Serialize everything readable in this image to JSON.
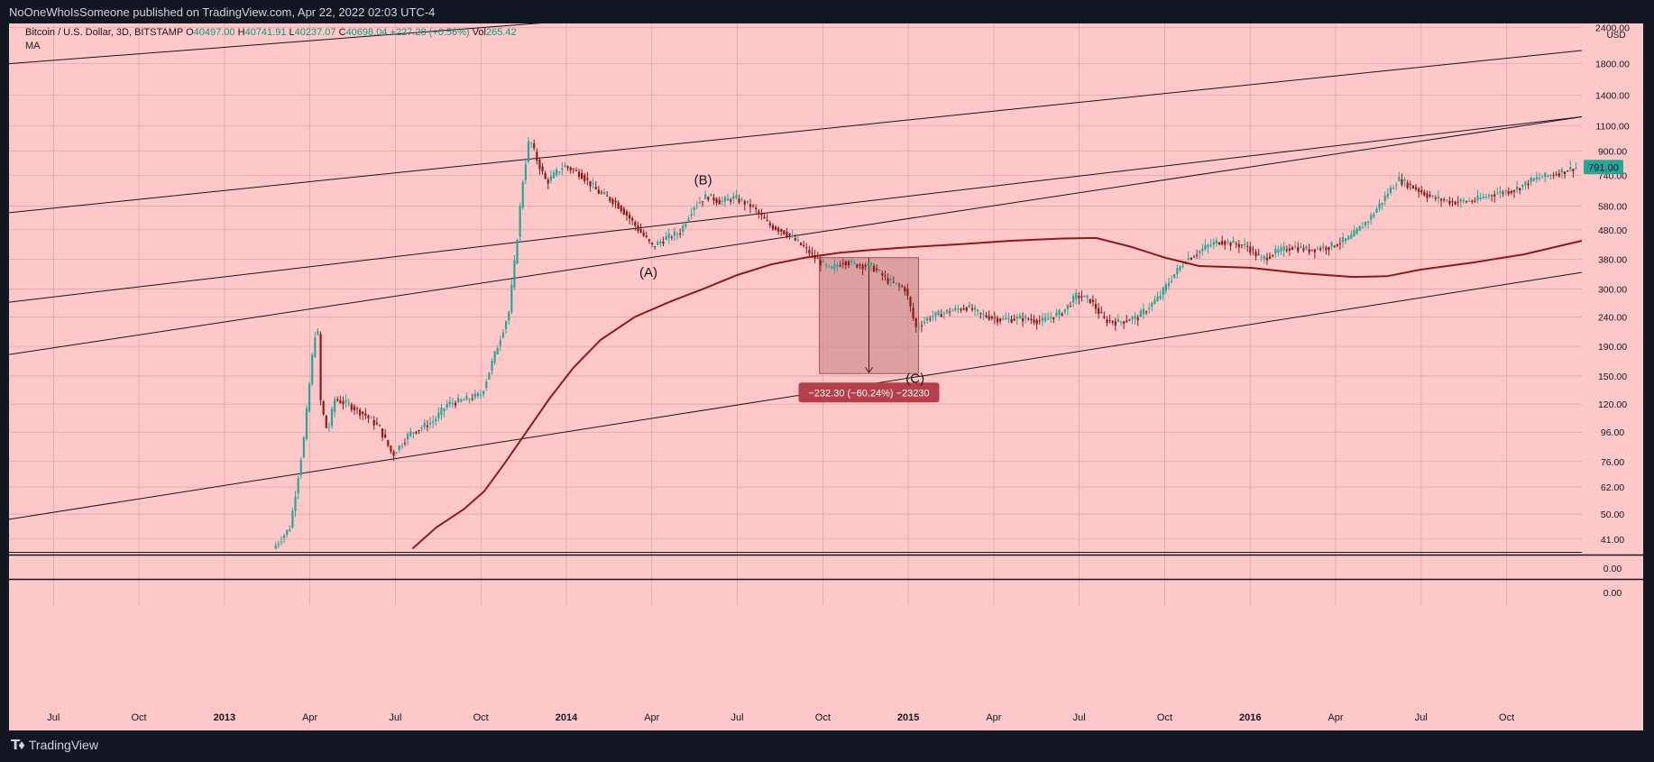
{
  "header": {
    "published": "NoOneWhoIsSomeone published on TradingView.com, Apr 22, 2022 02:03 UTC-4"
  },
  "legend": {
    "symbol": "Bitcoin / U.S. Dollar, 3D, BITSTAMP",
    "open_label": "O",
    "open": "40497.00",
    "high_label": "H",
    "high": "40741.91",
    "low_label": "L",
    "low": "40237.07",
    "close_label": "C",
    "close": "40698.04",
    "change": "+227.28 (+0.56%)",
    "vol_label": "Vol",
    "vol": "265.42",
    "indicator": "MA"
  },
  "footer": {
    "brand": "TradingView"
  },
  "colors": {
    "background": "#ffc8c8",
    "up": "#26a69a",
    "down": "#8b1a1a",
    "ma": "#8b1a1a",
    "measure_fill": "#c98b8b",
    "measure_label_bg": "#b5404a",
    "price_badge": "#26a69a"
  },
  "chart_data": {
    "type": "candlestick",
    "scale": "log",
    "currency": "USD",
    "y_ticks": [
      "2400.00",
      "1800.00",
      "1400.00",
      "1100.00",
      "900.00",
      "740.00",
      "580.00",
      "480.00",
      "380.00",
      "300.00",
      "240.00",
      "190.00",
      "150.00",
      "120.00",
      "96.00",
      "76.00",
      "62.00",
      "50.00",
      "41.00"
    ],
    "y_tick_values": [
      2400,
      1800,
      1400,
      1100,
      900,
      740,
      580,
      480,
      380,
      300,
      240,
      190,
      150,
      120,
      96,
      76,
      62,
      50,
      41
    ],
    "current_price": "791.00",
    "current_price_value": 791,
    "volume_pane_ticks": [
      "0.00",
      "0.00"
    ],
    "x_labels": [
      {
        "label": "Jul",
        "t": 2012.5,
        "bold": false
      },
      {
        "label": "Oct",
        "t": 2012.75,
        "bold": false
      },
      {
        "label": "2013",
        "t": 2013.0,
        "bold": true
      },
      {
        "label": "Apr",
        "t": 2013.25,
        "bold": false
      },
      {
        "label": "Jul",
        "t": 2013.5,
        "bold": false
      },
      {
        "label": "Oct",
        "t": 2013.75,
        "bold": false
      },
      {
        "label": "2014",
        "t": 2014.0,
        "bold": true
      },
      {
        "label": "Apr",
        "t": 2014.25,
        "bold": false
      },
      {
        "label": "Jul",
        "t": 2014.5,
        "bold": false
      },
      {
        "label": "Oct",
        "t": 2014.75,
        "bold": false
      },
      {
        "label": "2015",
        "t": 2015.0,
        "bold": true
      },
      {
        "label": "Apr",
        "t": 2015.25,
        "bold": false
      },
      {
        "label": "Jul",
        "t": 2015.5,
        "bold": false
      },
      {
        "label": "Oct",
        "t": 2015.75,
        "bold": false
      },
      {
        "label": "2016",
        "t": 2016.0,
        "bold": true
      },
      {
        "label": "Apr",
        "t": 2016.25,
        "bold": false
      },
      {
        "label": "Jul",
        "t": 2016.5,
        "bold": false
      },
      {
        "label": "Oct",
        "t": 2016.75,
        "bold": false
      }
    ],
    "x_range": [
      2012.37,
      2016.97
    ],
    "price_path": [
      [
        2013.15,
        38
      ],
      [
        2013.2,
        45
      ],
      [
        2013.24,
        90
      ],
      [
        2013.27,
        200
      ],
      [
        2013.28,
        230
      ],
      [
        2013.29,
        120
      ],
      [
        2013.31,
        95
      ],
      [
        2013.33,
        125
      ],
      [
        2013.37,
        120
      ],
      [
        2013.42,
        110
      ],
      [
        2013.46,
        100
      ],
      [
        2013.5,
        80
      ],
      [
        2013.55,
        95
      ],
      [
        2013.62,
        105
      ],
      [
        2013.66,
        120
      ],
      [
        2013.72,
        125
      ],
      [
        2013.76,
        130
      ],
      [
        2013.8,
        180
      ],
      [
        2013.84,
        250
      ],
      [
        2013.86,
        400
      ],
      [
        2013.88,
        700
      ],
      [
        2013.9,
        1000
      ],
      [
        2013.92,
        850
      ],
      [
        2013.95,
        700
      ],
      [
        2014.0,
        800
      ],
      [
        2014.05,
        750
      ],
      [
        2014.1,
        650
      ],
      [
        2014.15,
        600
      ],
      [
        2014.18,
        550
      ],
      [
        2014.22,
        480
      ],
      [
        2014.26,
        420
      ],
      [
        2014.3,
        450
      ],
      [
        2014.34,
        470
      ],
      [
        2014.38,
        580
      ],
      [
        2014.42,
        630
      ],
      [
        2014.46,
        600
      ],
      [
        2014.5,
        620
      ],
      [
        2014.55,
        580
      ],
      [
        2014.6,
        500
      ],
      [
        2014.65,
        470
      ],
      [
        2014.7,
        420
      ],
      [
        2014.74,
        380
      ],
      [
        2014.78,
        350
      ],
      [
        2014.82,
        375
      ],
      [
        2014.85,
        365
      ],
      [
        2014.9,
        360
      ],
      [
        2014.95,
        320
      ],
      [
        2015.0,
        300
      ],
      [
        2015.03,
        220
      ],
      [
        2015.07,
        240
      ],
      [
        2015.12,
        250
      ],
      [
        2015.18,
        260
      ],
      [
        2015.22,
        245
      ],
      [
        2015.28,
        235
      ],
      [
        2015.34,
        238
      ],
      [
        2015.4,
        232
      ],
      [
        2015.46,
        250
      ],
      [
        2015.5,
        285
      ],
      [
        2015.54,
        275
      ],
      [
        2015.58,
        235
      ],
      [
        2015.62,
        230
      ],
      [
        2015.68,
        240
      ],
      [
        2015.74,
        280
      ],
      [
        2015.78,
        330
      ],
      [
        2015.82,
        380
      ],
      [
        2015.84,
        390
      ],
      [
        2015.88,
        420
      ],
      [
        2015.92,
        440
      ],
      [
        2015.96,
        430
      ],
      [
        2016.0,
        420
      ],
      [
        2016.04,
        380
      ],
      [
        2016.08,
        400
      ],
      [
        2016.13,
        420
      ],
      [
        2016.18,
        410
      ],
      [
        2016.24,
        420
      ],
      [
        2016.3,
        450
      ],
      [
        2016.36,
        530
      ],
      [
        2016.44,
        720
      ],
      [
        2016.48,
        680
      ],
      [
        2016.54,
        620
      ],
      [
        2016.6,
        600
      ],
      [
        2016.66,
        605
      ],
      [
        2016.72,
        640
      ],
      [
        2016.78,
        660
      ],
      [
        2016.84,
        720
      ],
      [
        2016.9,
        750
      ],
      [
        2016.96,
        790
      ]
    ],
    "ma_path": [
      [
        2013.55,
        38
      ],
      [
        2013.62,
        45
      ],
      [
        2013.7,
        52
      ],
      [
        2013.76,
        60
      ],
      [
        2013.82,
        75
      ],
      [
        2013.88,
        95
      ],
      [
        2013.95,
        125
      ],
      [
        2014.02,
        160
      ],
      [
        2014.1,
        200
      ],
      [
        2014.2,
        240
      ],
      [
        2014.3,
        270
      ],
      [
        2014.4,
        300
      ],
      [
        2014.5,
        335
      ],
      [
        2014.6,
        365
      ],
      [
        2014.7,
        385
      ],
      [
        2014.8,
        400
      ],
      [
        2014.9,
        410
      ],
      [
        2015.0,
        418
      ],
      [
        2015.15,
        428
      ],
      [
        2015.3,
        440
      ],
      [
        2015.45,
        448
      ],
      [
        2015.55,
        450
      ],
      [
        2015.65,
        420
      ],
      [
        2015.75,
        385
      ],
      [
        2015.85,
        360
      ],
      [
        2016.0,
        355
      ],
      [
        2016.15,
        340
      ],
      [
        2016.3,
        330
      ],
      [
        2016.4,
        332
      ],
      [
        2016.5,
        350
      ],
      [
        2016.65,
        370
      ],
      [
        2016.8,
        395
      ],
      [
        2016.97,
        440
      ]
    ],
    "channel_lines": [
      {
        "t0": 2012.37,
        "p0": 1800,
        "t1": 2013.95,
        "p1": 2500
      },
      {
        "t0": 2012.37,
        "p0": 550,
        "t1": 2016.97,
        "p1": 2000
      },
      {
        "t0": 2012.37,
        "p0": 270,
        "t1": 2016.97,
        "p1": 1180
      },
      {
        "t0": 2012.37,
        "p0": 178,
        "t1": 2016.97,
        "p1": 1180,
        "note": "parallel"
      },
      {
        "t0": 2012.37,
        "p0": 48,
        "t1": 2016.97,
        "p1": 342
      }
    ],
    "wave_labels": [
      {
        "text": "(B)",
        "t": 2014.4,
        "p": 690
      },
      {
        "text": "(A)",
        "t": 2014.24,
        "p": 330
      },
      {
        "text": "(C)",
        "t": 2015.02,
        "p": 142
      }
    ],
    "measure": {
      "t0": 2014.74,
      "t1": 2015.03,
      "top": 385,
      "bottom": 153,
      "label": "−232.30 (−60.24%) −23230"
    }
  }
}
